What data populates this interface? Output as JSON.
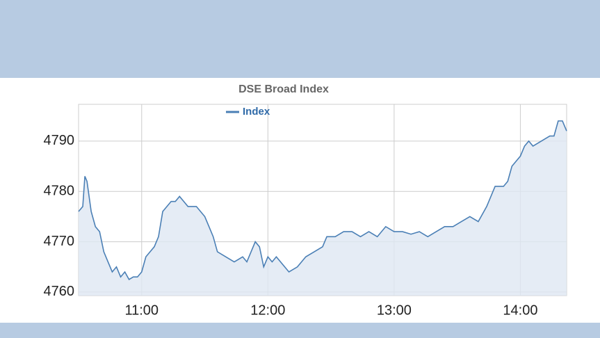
{
  "chart_data": {
    "type": "line",
    "title": "DSE Broad Index",
    "x": [
      "10:30",
      "10:32",
      "10:33",
      "10:34",
      "10:36",
      "10:38",
      "10:40",
      "10:42",
      "10:44",
      "10:46",
      "10:48",
      "10:50",
      "10:52",
      "10:54",
      "10:56",
      "10:58",
      "11:00",
      "11:02",
      "11:04",
      "11:06",
      "11:08",
      "11:10",
      "11:12",
      "11:14",
      "11:16",
      "11:18",
      "11:20",
      "11:22",
      "11:26",
      "11:30",
      "11:32",
      "11:34",
      "11:36",
      "11:40",
      "11:44",
      "11:48",
      "11:50",
      "11:54",
      "11:56",
      "11:58",
      "12:00",
      "12:02",
      "12:04",
      "12:06",
      "12:08",
      "12:10",
      "12:14",
      "12:18",
      "12:22",
      "12:26",
      "12:28",
      "12:32",
      "12:36",
      "12:40",
      "12:44",
      "12:48",
      "12:52",
      "12:56",
      "13:00",
      "13:04",
      "13:08",
      "13:12",
      "13:16",
      "13:20",
      "13:24",
      "13:28",
      "13:32",
      "13:36",
      "13:40",
      "13:44",
      "13:48",
      "13:52",
      "13:54",
      "13:56",
      "13:58",
      "14:00",
      "14:02",
      "14:04",
      "14:06",
      "14:10",
      "14:14",
      "14:16",
      "14:18",
      "14:20",
      "14:22"
    ],
    "series": [
      {
        "name": "Index",
        "color": "#4a7fb5",
        "values": [
          4776,
          4777,
          4783,
          4782,
          4776,
          4773,
          4772,
          4768,
          4766,
          4764,
          4765,
          4763,
          4764,
          4762.5,
          4763,
          4763,
          4764,
          4767,
          4768,
          4769,
          4771,
          4776,
          4777,
          4778,
          4778,
          4779,
          4778,
          4777,
          4777,
          4775,
          4773,
          4771,
          4768,
          4767,
          4766,
          4767,
          4766,
          4770,
          4769,
          4765,
          4767,
          4766,
          4767,
          4766,
          4765,
          4764,
          4765,
          4767,
          4768,
          4769,
          4771,
          4771,
          4772,
          4772,
          4771,
          4772,
          4771,
          4773,
          4772,
          4772,
          4771.5,
          4772,
          4771,
          4772,
          4773,
          4773,
          4774,
          4775,
          4774,
          4777,
          4781,
          4781,
          4782,
          4785,
          4786,
          4787,
          4789,
          4790,
          4789,
          4790,
          4791,
          4791,
          4794,
          4794,
          4792
        ]
      }
    ],
    "xlim": [
      "10:30",
      "14:22"
    ],
    "xticks": [
      "11:00",
      "12:00",
      "13:00",
      "14:00"
    ],
    "ylim": [
      4759.3,
      4797.3
    ],
    "yticks": [
      4760,
      4770,
      4780,
      4790
    ],
    "grid": true,
    "legend": "top"
  }
}
